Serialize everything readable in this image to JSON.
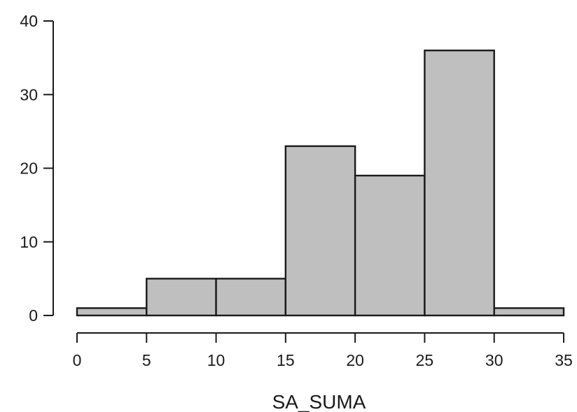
{
  "chart_data": {
    "type": "bar",
    "title": "",
    "xlabel": "SA_SUMA",
    "ylabel": "",
    "bins": [
      {
        "start": 0,
        "end": 5,
        "count": 1
      },
      {
        "start": 5,
        "end": 10,
        "count": 5
      },
      {
        "start": 10,
        "end": 15,
        "count": 5
      },
      {
        "start": 15,
        "end": 20,
        "count": 23
      },
      {
        "start": 20,
        "end": 25,
        "count": 19
      },
      {
        "start": 25,
        "end": 30,
        "count": 36
      },
      {
        "start": 30,
        "end": 35,
        "count": 1
      }
    ],
    "xlim": [
      0,
      35
    ],
    "ylim": [
      0,
      40
    ],
    "x_ticks": [
      "0",
      "5",
      "10",
      "15",
      "20",
      "25",
      "30",
      "35"
    ],
    "y_ticks": [
      "0",
      "10",
      "20",
      "30",
      "40"
    ],
    "grid": false,
    "bar_color": "#bfbfbf",
    "edge_color": "#1a1a1a"
  }
}
